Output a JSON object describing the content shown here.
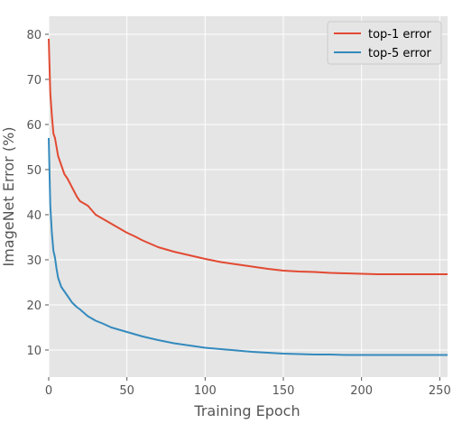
{
  "chart_data": {
    "type": "line",
    "title": "",
    "xlabel": "Training Epoch",
    "ylabel": "ImageNet Error (%)",
    "xlim": [
      0,
      255
    ],
    "ylim": [
      4,
      84
    ],
    "x_ticks": [
      0,
      50,
      100,
      150,
      200,
      250
    ],
    "y_ticks": [
      10,
      20,
      30,
      40,
      50,
      60,
      70,
      80
    ],
    "grid": true,
    "legend_position": "top-right",
    "x": [
      0,
      1,
      2,
      3,
      4,
      5,
      6,
      8,
      10,
      12,
      15,
      18,
      20,
      25,
      30,
      35,
      40,
      45,
      50,
      55,
      60,
      70,
      80,
      90,
      100,
      110,
      120,
      130,
      140,
      150,
      160,
      170,
      180,
      190,
      200,
      210,
      220,
      230,
      240,
      250,
      255
    ],
    "series": [
      {
        "name": "top-1 error",
        "color": "#e24a33",
        "values": [
          79,
          67,
          62,
          58,
          57,
          55,
          53,
          51,
          49,
          48,
          46,
          44,
          43,
          42,
          40,
          39,
          38,
          37,
          36,
          35.2,
          34.3,
          32.8,
          31.8,
          31,
          30.2,
          29.5,
          29,
          28.5,
          28,
          27.6,
          27.4,
          27.3,
          27.1,
          27.0,
          26.9,
          26.8,
          26.8,
          26.8,
          26.8,
          26.8,
          26.8
        ]
      },
      {
        "name": "top-5 error",
        "color": "#348abd",
        "values": [
          57,
          42,
          36,
          32,
          30.5,
          28,
          26,
          24,
          23,
          22,
          20.5,
          19.5,
          19,
          17.5,
          16.5,
          15.8,
          15,
          14.5,
          14,
          13.5,
          13,
          12.2,
          11.5,
          11,
          10.5,
          10.2,
          9.9,
          9.6,
          9.4,
          9.2,
          9.1,
          9.0,
          9.0,
          8.9,
          8.9,
          8.9,
          8.9,
          8.9,
          8.9,
          8.9,
          8.9
        ]
      }
    ]
  }
}
